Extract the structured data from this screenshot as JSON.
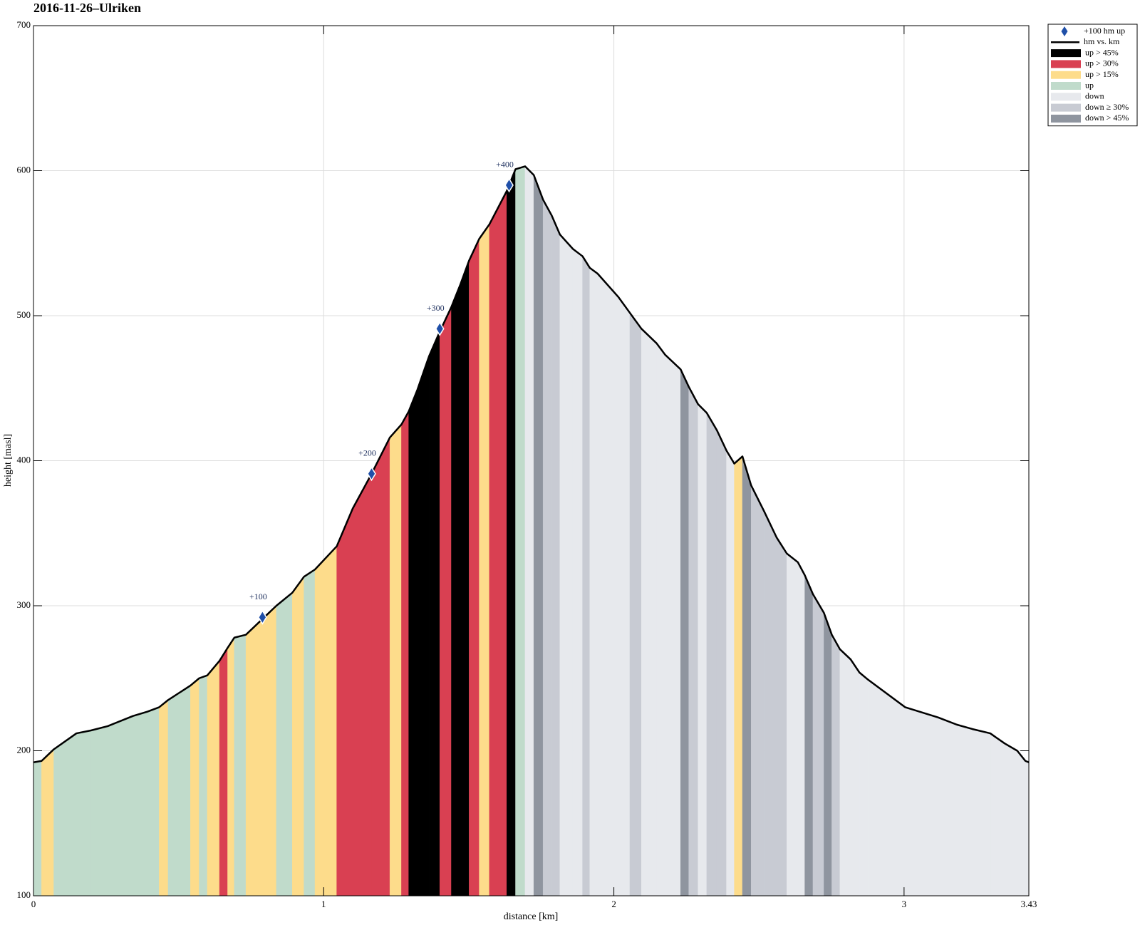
{
  "chart_data": {
    "type": "area",
    "title": "2016-11-26–Ulriken",
    "xlabel": "distance [km]",
    "ylabel": "height [masl]",
    "xlim": [
      0,
      3.43
    ],
    "ylim": [
      100,
      700
    ],
    "xticks": [
      0,
      1,
      2,
      3,
      3.43
    ],
    "yticks": [
      100,
      200,
      300,
      400,
      500,
      600,
      700
    ],
    "grid": true,
    "legend": "outside-upper-right",
    "line": {
      "name": "hm vs. km",
      "color": "#000000"
    },
    "x": [
      0,
      0.028,
      0.07,
      0.148,
      0.198,
      0.256,
      0.343,
      0.393,
      0.433,
      0.464,
      0.541,
      0.571,
      0.599,
      0.641,
      0.669,
      0.692,
      0.732,
      0.837,
      0.892,
      0.932,
      0.97,
      1.045,
      1.1,
      1.165,
      1.228,
      1.268,
      1.293,
      1.323,
      1.363,
      1.4,
      1.44,
      1.47,
      1.501,
      1.536,
      1.571,
      1.631,
      1.661,
      1.694,
      1.724,
      1.756,
      1.786,
      1.814,
      1.859,
      1.892,
      1.917,
      1.944,
      2.015,
      2.055,
      2.095,
      2.147,
      2.177,
      2.23,
      2.258,
      2.29,
      2.32,
      2.355,
      2.388,
      2.415,
      2.443,
      2.473,
      2.518,
      2.561,
      2.596,
      2.634,
      2.658,
      2.686,
      2.724,
      2.751,
      2.779,
      2.816,
      2.846,
      2.876,
      3.004,
      3.117,
      3.182,
      3.235,
      3.297,
      3.347,
      3.39,
      3.418,
      3.43
    ],
    "y": [
      192,
      193,
      201,
      212,
      214,
      217,
      224,
      227,
      230,
      235,
      245,
      250,
      252,
      262,
      271,
      278,
      280,
      300,
      309,
      320,
      325,
      341,
      367,
      391,
      416,
      425,
      434,
      449,
      472,
      489,
      506,
      521,
      538,
      553,
      563,
      586,
      601,
      603,
      597,
      580,
      569,
      556,
      546,
      541,
      533,
      529,
      513,
      502,
      491,
      481,
      473,
      463,
      451,
      439,
      433,
      421,
      407,
      398,
      403,
      383,
      365,
      347,
      336,
      330,
      321,
      308,
      295,
      280,
      270,
      263,
      254,
      249,
      230,
      223,
      218,
      215,
      212,
      205,
      200,
      193,
      192
    ],
    "bands": [
      {
        "name": "up > 45%",
        "color": "#000000"
      },
      {
        "name": "up > 30%",
        "color": "#d94052"
      },
      {
        "name": "up > 15%",
        "color": "#fddc8b"
      },
      {
        "name": "up",
        "color": "#c0dbcb"
      },
      {
        "name": "down",
        "color": "#e7e9ed"
      },
      {
        "name": "down ≥ 30%",
        "color": "#c8cbd3"
      },
      {
        "name": "down > 45%",
        "color": "#8f959f"
      }
    ],
    "segment_band": [
      3,
      2,
      3,
      3,
      3,
      3,
      3,
      3,
      2,
      3,
      2,
      3,
      2,
      1,
      2,
      3,
      2,
      3,
      2,
      3,
      2,
      1,
      1,
      1,
      2,
      1,
      0,
      0,
      0,
      1,
      0,
      0,
      1,
      2,
      1,
      0,
      3,
      4,
      6,
      5,
      5,
      4,
      4,
      5,
      4,
      4,
      4,
      5,
      4,
      4,
      4,
      6,
      5,
      4,
      5,
      5,
      4,
      2,
      6,
      5,
      5,
      5,
      4,
      4,
      6,
      5,
      6,
      5,
      4,
      4,
      4,
      4,
      4,
      4,
      4,
      4,
      4,
      4,
      4,
      4
    ],
    "markers": {
      "name": "+100 hm up",
      "color": "#1f4fa8",
      "x": [
        0.789,
        1.165,
        1.4,
        1.639
      ],
      "y": [
        292,
        391,
        491,
        590
      ],
      "labels": [
        "+100",
        "+200",
        "+300",
        "+400"
      ]
    }
  }
}
